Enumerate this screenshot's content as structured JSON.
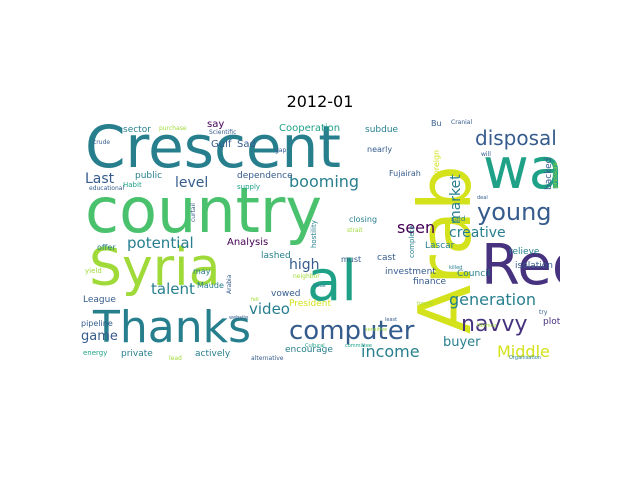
{
  "title": "2012-01",
  "colors": {
    "dark_purple": "#440154",
    "indigo": "#46327e",
    "blue": "#365c8d",
    "teal_blue": "#277f8e",
    "teal": "#1fa187",
    "green": "#4ac16d",
    "light_green": "#a0da39",
    "yellow": "#d3e21b"
  },
  "words": {
    "crescent": "Crescent",
    "country": "country",
    "syria": "Syria",
    "arab": "Arab",
    "wa": "wa",
    "al": "al",
    "red": "Red",
    "thanks": "Thanks",
    "computer": "computer",
    "young": "young",
    "navvy": "navvy",
    "disposal": "disposal",
    "booming": "booming",
    "generation": "generation",
    "income": "income",
    "middle": "Middle",
    "seen": "seen",
    "creative": "creative",
    "market": "market",
    "potential": "potential",
    "talent": "talent",
    "video": "video",
    "high": "high",
    "level": "level",
    "last": "Last",
    "buyer": "buyer",
    "game": "game",
    "analysis": "Analysis",
    "cooperation": "Cooperation",
    "gulf": "Gulf",
    "sad": "Sad",
    "say": "say",
    "sector": "sector",
    "public": "public",
    "dependence": "dependence",
    "subdue": "subdue",
    "relieve": "relieve",
    "isolation": "isolation",
    "backed": "backed",
    "bu": "Bu",
    "nearly": "nearly",
    "fujairah": "Fujairah",
    "lashed": "lashed",
    "vowed": "vowed",
    "encourage": "encourage",
    "actively": "actively",
    "private": "private",
    "pipeline": "pipeline",
    "league": "League",
    "president": "President",
    "lascar": "Lascar",
    "council": "Council",
    "excessive": "excessive",
    "plot": "plot",
    "finance": "finance",
    "investment": "investment",
    "cast": "cast",
    "must": "must",
    "hostility": "hostility",
    "closing": "closing",
    "offer": "offer",
    "may": "may",
    "maude": "Maude",
    "energy": "energy",
    "said": "said",
    "complete": "complete",
    "habit": "Habit",
    "supply": "supply",
    "foreign": "foreign",
    "yield": "yield",
    "crude": "crude",
    "gap": "gap",
    "purchase": "purchase",
    "scientific": "Scientific",
    "alternative": "alternative",
    "lead": "lead",
    "arabia": "Arabia",
    "strait": "strait",
    "neighbor": "neighbor",
    "educational": "educational",
    "curtail": "curtail",
    "organisation": "Organisation",
    "pressure": "pressure",
    "cranial": "Cranial",
    "will": "will",
    "try": "try",
    "cultural": "Cultural",
    "committee": "committee",
    "least": "least",
    "sensitive": "sensitive",
    "hormuz": "Hormuz",
    "deal": "deal",
    "fell": "fell",
    "forced": "forced",
    "killed": "killed",
    "issue": "issue",
    "website": "website"
  }
}
